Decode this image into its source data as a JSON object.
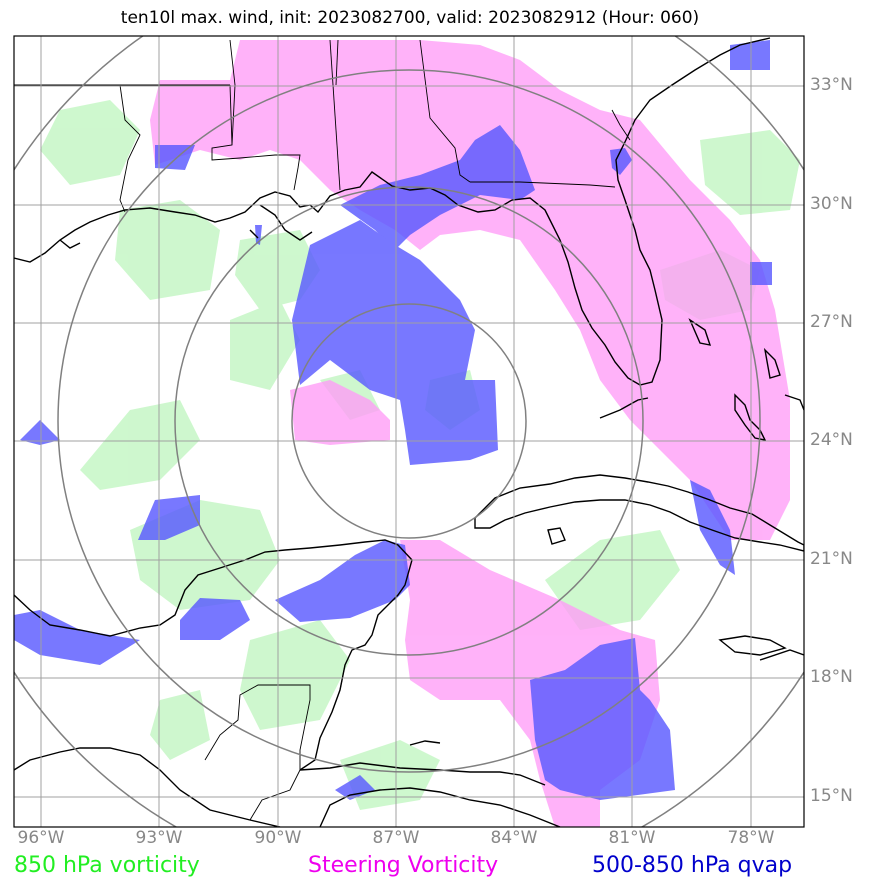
{
  "title": "ten10l max. wind, init: 2023082700, valid: 2023082912 (Hour: 060)",
  "lat_labels": [
    "33°N",
    "30°N",
    "27°N",
    "24°N",
    "21°N",
    "18°N",
    "15°N"
  ],
  "lon_labels": [
    "96°W",
    "93°W",
    "90°W",
    "87°W",
    "84°W",
    "81°W",
    "78°W"
  ],
  "legend": {
    "green": "850 hPa vorticity",
    "magenta": "Steering Vorticity",
    "blue": "500-850 hPa qvap"
  },
  "colors": {
    "green_text": "#22ee22",
    "magenta_text": "#ee00ee",
    "blue_text": "#0000cc",
    "green_fill": "#c9f7c9",
    "magenta_fill": "#ff9cf7",
    "blue_fill": "#5a5aff",
    "grid": "#a0a0a0",
    "range_rings": "#808080",
    "coast": "#000000"
  }
}
